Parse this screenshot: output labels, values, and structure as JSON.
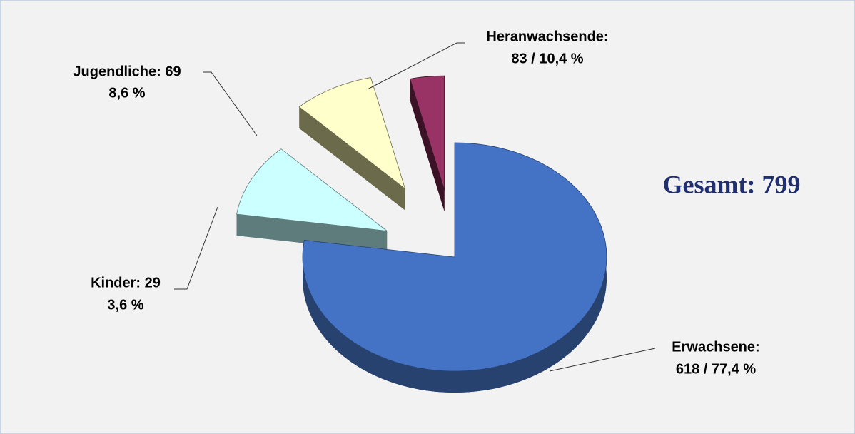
{
  "chart_data": {
    "type": "pie",
    "annotation": "Gesamt: 799",
    "categories": [
      "Erwachsene",
      "Heranwachsende",
      "Jugendliche",
      "Kinder"
    ],
    "values": [
      618,
      83,
      69,
      29
    ],
    "value_labels": [
      [
        "Erwachsene:",
        "618 / 77,4 %"
      ],
      [
        "Heranwachsende:",
        "83 / 10,4 %"
      ],
      [
        "Jugendliche: 69",
        "8,6 %"
      ],
      [
        "Kinder: 29",
        "3,6 %"
      ]
    ],
    "colors": [
      "#4472c4",
      "#ccffff",
      "#ffffcc",
      "#993366"
    ],
    "side_colors": [
      "#27426f",
      "#5f7c7c",
      "#6b6b4c",
      "#3c1326"
    ]
  }
}
